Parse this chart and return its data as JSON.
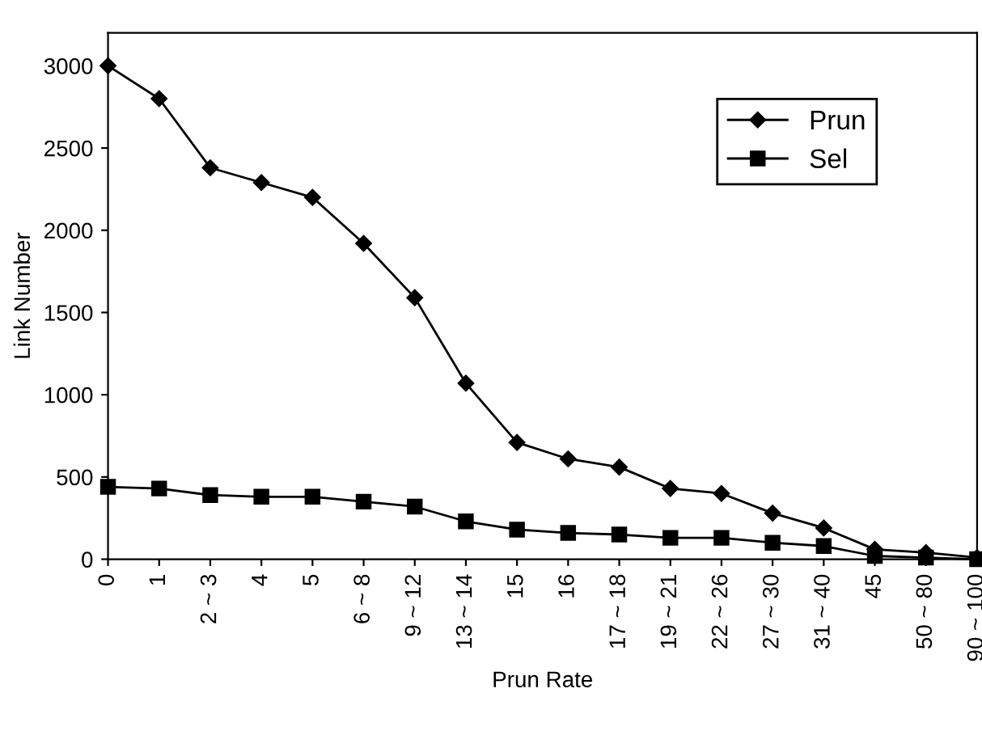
{
  "chart_data": {
    "type": "line",
    "xlabel": "Prun Rate",
    "ylabel": "Link Number",
    "categories": [
      "0",
      "1",
      "2 ~ 3",
      "4",
      "5",
      "6 ~ 8",
      "9 ~ 12",
      "13 ~ 14",
      "15",
      "16",
      "17 ~ 18",
      "19 ~ 21",
      "22 ~ 26",
      "27 ~ 30",
      "31 ~ 40",
      "45",
      "50 ~ 80",
      "90 ~ 100"
    ],
    "series": [
      {
        "name": "Prun",
        "color": "#000000",
        "marker": "diamond",
        "values": [
          3000,
          2800,
          2380,
          2290,
          2200,
          1920,
          1590,
          1070,
          710,
          610,
          560,
          430,
          400,
          280,
          190,
          60,
          40,
          10
        ]
      },
      {
        "name": "Sel",
        "color": "#000000",
        "marker": "square",
        "values": [
          440,
          430,
          390,
          380,
          380,
          350,
          320,
          230,
          180,
          160,
          150,
          130,
          130,
          100,
          80,
          20,
          10,
          0
        ]
      }
    ],
    "ylim": [
      0,
      3200
    ],
    "yticks": [
      0,
      500,
      1000,
      1500,
      2000,
      2500,
      3000
    ],
    "grid": false,
    "legend": "top right",
    "line_style": "solid"
  }
}
